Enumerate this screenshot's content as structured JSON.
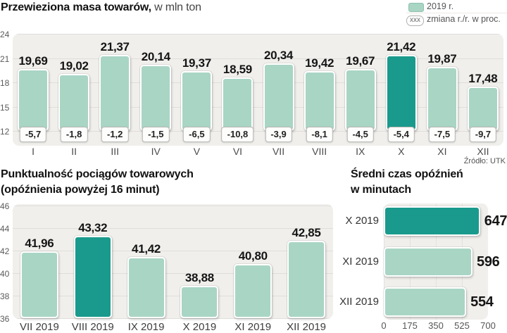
{
  "colors": {
    "bar_light": "#a9d5c5",
    "bar_dark": "#1a9a8c",
    "plot_bg": "#f0efec",
    "gridline": "#dfdeda",
    "swatch_border": "#8fc0ae"
  },
  "legend": [
    {
      "label": "2019 r."
    },
    {
      "badge": "xxx",
      "label": "zmiana r./r. w proc."
    }
  ],
  "source": "Źródło: UTK",
  "chart_data": [
    {
      "id": "freight-mass",
      "type": "bar",
      "title_bold": "Przewieziona masa towarów,",
      "title_unit": "w mln ton",
      "categories": [
        "I",
        "II",
        "III",
        "IV",
        "V",
        "VI",
        "VII",
        "VIII",
        "IX",
        "X",
        "XI",
        "XII"
      ],
      "values": [
        19.69,
        19.02,
        21.37,
        20.14,
        19.37,
        18.59,
        20.34,
        19.42,
        19.67,
        21.42,
        19.87,
        17.48
      ],
      "value_labels": [
        "19,69",
        "19,02",
        "21,37",
        "20,14",
        "19,37",
        "18,59",
        "20,34",
        "19,42",
        "19,67",
        "21,42",
        "19,87",
        "17,48"
      ],
      "change_labels": [
        "-5,7",
        "-1,8",
        "-1,2",
        "-1,5",
        "-6,5",
        "-10,8",
        "-3,9",
        "-8,1",
        "-4,5",
        "-5,4",
        "-7,5",
        "-9,7"
      ],
      "highlight_index": 9,
      "ylim": [
        12,
        24
      ],
      "yticks": [
        24,
        21,
        18,
        15,
        12
      ],
      "legend_position": "top-right",
      "grid": true
    },
    {
      "id": "punctuality",
      "type": "bar",
      "title_line1": "Punktualność pociągów towarowych",
      "title_line2": "(opóźnienia powyżej 16 minut)",
      "categories": [
        "VII 2019",
        "VIII 2019",
        "IX 2019",
        "X 2019",
        "XI 2019",
        "XII 2019"
      ],
      "values": [
        41.96,
        43.32,
        41.42,
        38.88,
        40.8,
        42.85
      ],
      "value_labels": [
        "41,96",
        "43,32",
        "41,42",
        "38,88",
        "40,80",
        "42,85"
      ],
      "highlight_index": 1,
      "ylim": [
        36,
        46
      ],
      "yticks": [
        46,
        44,
        42,
        40,
        38,
        36
      ],
      "grid": true
    },
    {
      "id": "average-delay",
      "type": "bar",
      "orientation": "horizontal",
      "title_line1": "Średni czas opóźnień",
      "title_line2": "w minutach",
      "categories": [
        "X 2019",
        "XI 2019",
        "XII 2019"
      ],
      "values": [
        647,
        596,
        554
      ],
      "value_labels": [
        "647",
        "596",
        "554"
      ],
      "highlight_index": 0,
      "xlim": [
        0,
        700
      ],
      "xticks": [
        0,
        175,
        350,
        525,
        700
      ],
      "grid": true
    }
  ]
}
